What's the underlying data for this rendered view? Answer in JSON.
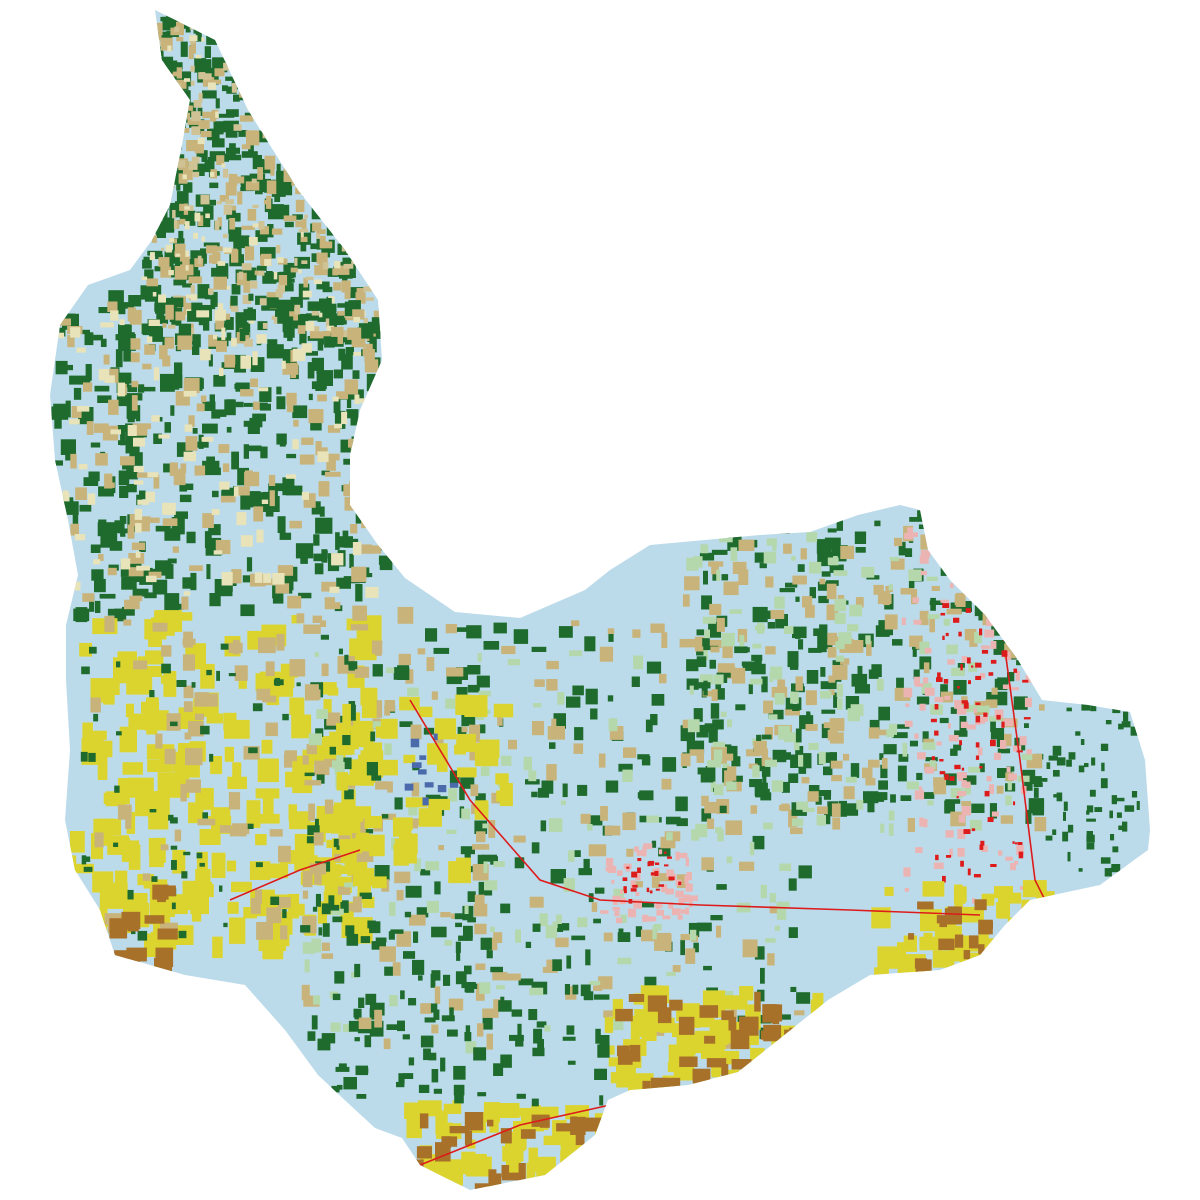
{
  "map": {
    "land_cover_colors": {
      "pasture_hay": "#bcdbea",
      "deciduous_forest": "#1f6b2e",
      "mixed_forest": "#cfc295",
      "shrub_grass": "#c8b47b",
      "herbaceous": "#e8e3b8",
      "wetland_green": "#b4d8ab",
      "cultivated_crops": "#dcd42e",
      "barren_brown": "#a8712a",
      "developed_low": "#ecb3b3",
      "developed_high": "#dd1b1b",
      "open_water": "#4a6aab"
    }
  }
}
